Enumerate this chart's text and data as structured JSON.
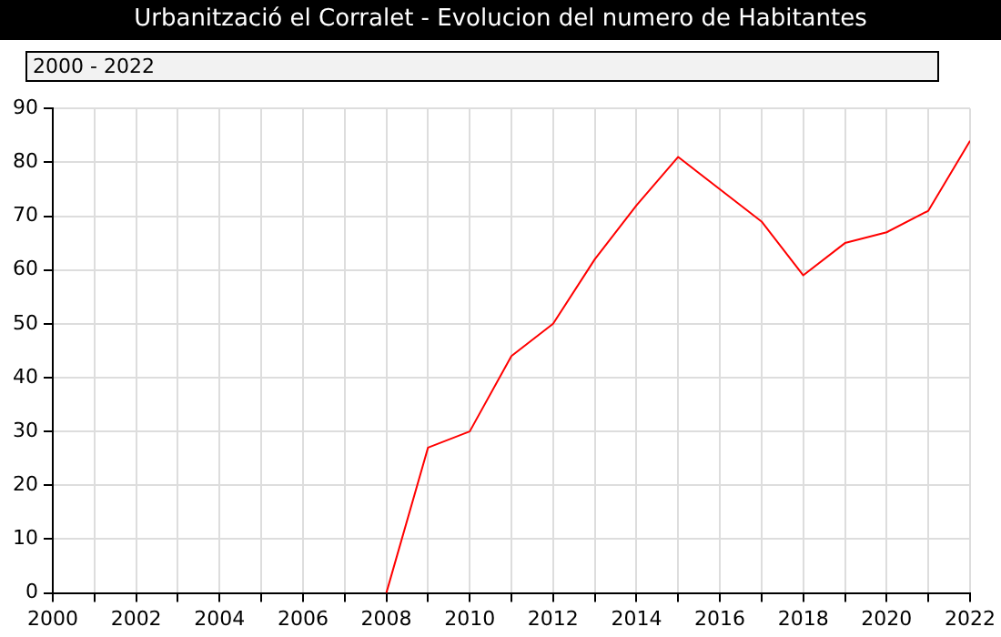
{
  "chart_data": {
    "type": "line",
    "title": "Urbanització el Corralet - Evolucion del numero de Habitantes",
    "subtitle": "2000 - 2022",
    "x": [
      2008,
      2009,
      2010,
      2011,
      2012,
      2013,
      2014,
      2015,
      2016,
      2017,
      2018,
      2019,
      2020,
      2021,
      2022
    ],
    "series": [
      {
        "color": "#ff0000",
        "values": [
          0,
          27,
          30,
          44,
          50,
          62,
          72,
          81,
          75,
          69,
          59,
          65,
          67,
          71,
          84
        ]
      }
    ],
    "xlim": [
      2000,
      2022
    ],
    "xticks": [
      2000,
      {
        "value": 2001,
        "label": null
      },
      2002,
      {
        "value": 2003,
        "label": null
      },
      2004,
      {
        "value": 2005,
        "label": null
      },
      2006,
      {
        "value": 2007,
        "label": null
      },
      2008,
      {
        "value": 2009,
        "label": null
      },
      2010,
      {
        "value": 2011,
        "label": null
      },
      2012,
      {
        "value": 2013,
        "label": null
      },
      2014,
      {
        "value": 2015,
        "label": null
      },
      2016,
      {
        "value": 2017,
        "label": null
      },
      2018,
      {
        "value": 2019,
        "label": null
      },
      2020,
      {
        "value": 2021,
        "label": null
      },
      2022
    ],
    "ylim": [
      0,
      90
    ],
    "yticks": [
      0,
      10,
      20,
      30,
      40,
      50,
      60,
      70,
      80,
      90
    ],
    "grid": true,
    "legend": false,
    "marker": "none",
    "line_style": "solid"
  }
}
